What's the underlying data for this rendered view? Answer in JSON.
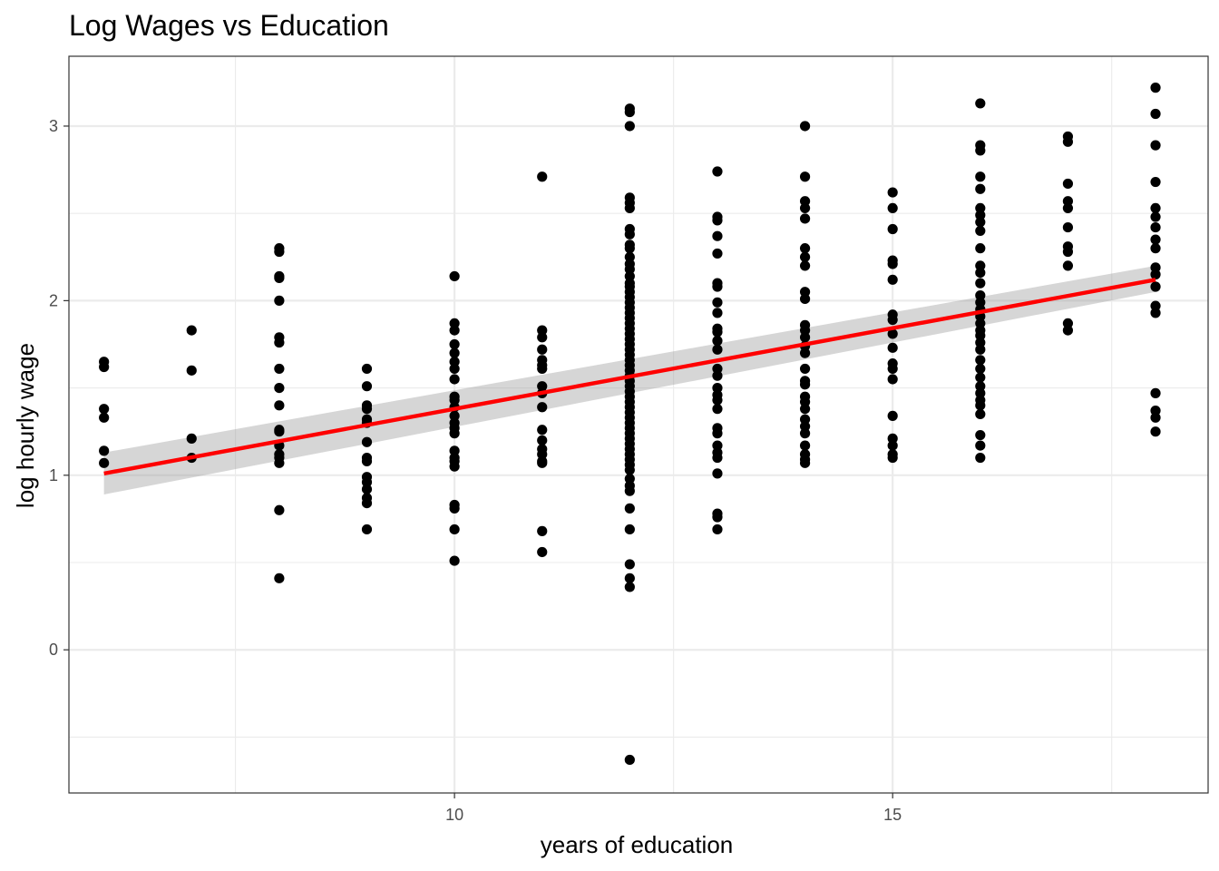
{
  "chart_data": {
    "type": "scatter",
    "title": "Log Wages vs Education",
    "xlabel": "years of education",
    "ylabel": "log hourly wage",
    "xlim": [
      5.6,
      18.6
    ],
    "ylim": [
      -0.82,
      3.4
    ],
    "x_ticks": [
      10,
      15
    ],
    "x_tick_labels": [
      "10",
      "15"
    ],
    "x_minor_ticks": [
      7.5,
      12.5,
      17.5
    ],
    "y_ticks": [
      0,
      1,
      2,
      3
    ],
    "y_tick_labels": [
      "0",
      "1",
      "2",
      "3"
    ],
    "y_minor_ticks": [
      -0.5,
      0.5,
      1.5,
      2.5
    ],
    "grid": true,
    "colors": {
      "points": "#000000",
      "fit_line": "#ff0000",
      "ribbon": "#999999",
      "grid": "#ebebeb",
      "panel_border": "#333333"
    },
    "series": [
      {
        "type": "scatter",
        "points": [
          [
            6,
            1.65
          ],
          [
            6,
            1.62
          ],
          [
            6,
            1.38
          ],
          [
            6,
            1.33
          ],
          [
            6,
            1.14
          ],
          [
            6,
            1.07
          ],
          [
            7,
            1.83
          ],
          [
            7,
            1.6
          ],
          [
            7,
            1.21
          ],
          [
            7,
            1.1
          ],
          [
            8,
            2.3
          ],
          [
            8,
            2.28
          ],
          [
            8,
            2.14
          ],
          [
            8,
            2.13
          ],
          [
            8,
            2.0
          ],
          [
            8,
            1.79
          ],
          [
            8,
            1.76
          ],
          [
            8,
            1.61
          ],
          [
            8,
            1.5
          ],
          [
            8,
            1.4
          ],
          [
            8,
            1.26
          ],
          [
            8,
            1.25
          ],
          [
            8,
            1.17
          ],
          [
            8,
            1.12
          ],
          [
            8,
            1.1
          ],
          [
            8,
            1.07
          ],
          [
            8,
            0.8
          ],
          [
            8,
            0.41
          ],
          [
            9,
            1.61
          ],
          [
            9,
            1.51
          ],
          [
            9,
            1.4
          ],
          [
            9,
            1.38
          ],
          [
            9,
            1.32
          ],
          [
            9,
            1.3
          ],
          [
            9,
            1.19
          ],
          [
            9,
            1.1
          ],
          [
            9,
            1.08
          ],
          [
            9,
            0.99
          ],
          [
            9,
            0.96
          ],
          [
            9,
            0.92
          ],
          [
            9,
            0.87
          ],
          [
            9,
            0.84
          ],
          [
            9,
            0.69
          ],
          [
            10,
            2.14
          ],
          [
            10,
            1.87
          ],
          [
            10,
            1.83
          ],
          [
            10,
            1.75
          ],
          [
            10,
            1.7
          ],
          [
            10,
            1.65
          ],
          [
            10,
            1.61
          ],
          [
            10,
            1.55
          ],
          [
            10,
            1.45
          ],
          [
            10,
            1.43
          ],
          [
            10,
            1.39
          ],
          [
            10,
            1.34
          ],
          [
            10,
            1.3
          ],
          [
            10,
            1.27
          ],
          [
            10,
            1.24
          ],
          [
            10,
            1.14
          ],
          [
            10,
            1.1
          ],
          [
            10,
            1.08
          ],
          [
            10,
            1.05
          ],
          [
            10,
            0.83
          ],
          [
            10,
            0.81
          ],
          [
            10,
            0.69
          ],
          [
            10,
            0.51
          ],
          [
            11,
            2.71
          ],
          [
            11,
            1.83
          ],
          [
            11,
            1.79
          ],
          [
            11,
            1.72
          ],
          [
            11,
            1.66
          ],
          [
            11,
            1.63
          ],
          [
            11,
            1.61
          ],
          [
            11,
            1.51
          ],
          [
            11,
            1.47
          ],
          [
            11,
            1.39
          ],
          [
            11,
            1.26
          ],
          [
            11,
            1.2
          ],
          [
            11,
            1.15
          ],
          [
            11,
            1.12
          ],
          [
            11,
            1.08
          ],
          [
            11,
            1.07
          ],
          [
            11,
            0.68
          ],
          [
            11,
            0.56
          ],
          [
            12,
            3.1
          ],
          [
            12,
            3.08
          ],
          [
            12,
            3.0
          ],
          [
            12,
            2.59
          ],
          [
            12,
            2.56
          ],
          [
            12,
            2.53
          ],
          [
            12,
            2.41
          ],
          [
            12,
            2.38
          ],
          [
            12,
            2.32
          ],
          [
            12,
            2.3
          ],
          [
            12,
            2.25
          ],
          [
            12,
            2.21
          ],
          [
            12,
            2.18
          ],
          [
            12,
            2.14
          ],
          [
            12,
            2.1
          ],
          [
            12,
            2.08
          ],
          [
            12,
            2.05
          ],
          [
            12,
            2.02
          ],
          [
            12,
            1.99
          ],
          [
            12,
            1.96
          ],
          [
            12,
            1.93
          ],
          [
            12,
            1.9
          ],
          [
            12,
            1.87
          ],
          [
            12,
            1.84
          ],
          [
            12,
            1.81
          ],
          [
            12,
            1.78
          ],
          [
            12,
            1.75
          ],
          [
            12,
            1.72
          ],
          [
            12,
            1.69
          ],
          [
            12,
            1.66
          ],
          [
            12,
            1.63
          ],
          [
            12,
            1.6
          ],
          [
            12,
            1.57
          ],
          [
            12,
            1.54
          ],
          [
            12,
            1.51
          ],
          [
            12,
            1.48
          ],
          [
            12,
            1.45
          ],
          [
            12,
            1.42
          ],
          [
            12,
            1.39
          ],
          [
            12,
            1.36
          ],
          [
            12,
            1.33
          ],
          [
            12,
            1.3
          ],
          [
            12,
            1.27
          ],
          [
            12,
            1.24
          ],
          [
            12,
            1.21
          ],
          [
            12,
            1.18
          ],
          [
            12,
            1.15
          ],
          [
            12,
            1.12
          ],
          [
            12,
            1.09
          ],
          [
            12,
            1.06
          ],
          [
            12,
            1.03
          ],
          [
            12,
            0.98
          ],
          [
            12,
            0.94
          ],
          [
            12,
            0.91
          ],
          [
            12,
            0.81
          ],
          [
            12,
            0.69
          ],
          [
            12,
            0.49
          ],
          [
            12,
            0.41
          ],
          [
            12,
            0.36
          ],
          [
            12,
            -0.63
          ],
          [
            13,
            2.74
          ],
          [
            13,
            2.48
          ],
          [
            13,
            2.46
          ],
          [
            13,
            2.37
          ],
          [
            13,
            2.27
          ],
          [
            13,
            2.1
          ],
          [
            13,
            2.08
          ],
          [
            13,
            1.99
          ],
          [
            13,
            1.93
          ],
          [
            13,
            1.84
          ],
          [
            13,
            1.82
          ],
          [
            13,
            1.77
          ],
          [
            13,
            1.72
          ],
          [
            13,
            1.61
          ],
          [
            13,
            1.57
          ],
          [
            13,
            1.5
          ],
          [
            13,
            1.46
          ],
          [
            13,
            1.43
          ],
          [
            13,
            1.38
          ],
          [
            13,
            1.27
          ],
          [
            13,
            1.24
          ],
          [
            13,
            1.17
          ],
          [
            13,
            1.13
          ],
          [
            13,
            1.1
          ],
          [
            13,
            1.01
          ],
          [
            13,
            0.78
          ],
          [
            13,
            0.76
          ],
          [
            13,
            0.69
          ],
          [
            14,
            3.0
          ],
          [
            14,
            2.71
          ],
          [
            14,
            2.57
          ],
          [
            14,
            2.53
          ],
          [
            14,
            2.47
          ],
          [
            14,
            2.3
          ],
          [
            14,
            2.25
          ],
          [
            14,
            2.2
          ],
          [
            14,
            2.05
          ],
          [
            14,
            2.01
          ],
          [
            14,
            1.86
          ],
          [
            14,
            1.83
          ],
          [
            14,
            1.79
          ],
          [
            14,
            1.74
          ],
          [
            14,
            1.7
          ],
          [
            14,
            1.61
          ],
          [
            14,
            1.54
          ],
          [
            14,
            1.52
          ],
          [
            14,
            1.45
          ],
          [
            14,
            1.42
          ],
          [
            14,
            1.38
          ],
          [
            14,
            1.32
          ],
          [
            14,
            1.28
          ],
          [
            14,
            1.24
          ],
          [
            14,
            1.17
          ],
          [
            14,
            1.12
          ],
          [
            14,
            1.09
          ],
          [
            14,
            1.07
          ],
          [
            15,
            2.62
          ],
          [
            15,
            2.53
          ],
          [
            15,
            2.41
          ],
          [
            15,
            2.23
          ],
          [
            15,
            2.21
          ],
          [
            15,
            2.12
          ],
          [
            15,
            1.92
          ],
          [
            15,
            1.89
          ],
          [
            15,
            1.81
          ],
          [
            15,
            1.73
          ],
          [
            15,
            1.64
          ],
          [
            15,
            1.61
          ],
          [
            15,
            1.55
          ],
          [
            15,
            1.34
          ],
          [
            15,
            1.21
          ],
          [
            15,
            1.17
          ],
          [
            15,
            1.12
          ],
          [
            15,
            1.1
          ],
          [
            16,
            3.13
          ],
          [
            16,
            2.89
          ],
          [
            16,
            2.86
          ],
          [
            16,
            2.71
          ],
          [
            16,
            2.64
          ],
          [
            16,
            2.53
          ],
          [
            16,
            2.49
          ],
          [
            16,
            2.45
          ],
          [
            16,
            2.4
          ],
          [
            16,
            2.3
          ],
          [
            16,
            2.2
          ],
          [
            16,
            2.16
          ],
          [
            16,
            2.1
          ],
          [
            16,
            2.03
          ],
          [
            16,
            1.99
          ],
          [
            16,
            1.95
          ],
          [
            16,
            1.91
          ],
          [
            16,
            1.87
          ],
          [
            16,
            1.83
          ],
          [
            16,
            1.8
          ],
          [
            16,
            1.76
          ],
          [
            16,
            1.72
          ],
          [
            16,
            1.66
          ],
          [
            16,
            1.61
          ],
          [
            16,
            1.56
          ],
          [
            16,
            1.51
          ],
          [
            16,
            1.47
          ],
          [
            16,
            1.43
          ],
          [
            16,
            1.4
          ],
          [
            16,
            1.35
          ],
          [
            16,
            1.23
          ],
          [
            16,
            1.17
          ],
          [
            16,
            1.1
          ],
          [
            17,
            2.94
          ],
          [
            17,
            2.91
          ],
          [
            17,
            2.67
          ],
          [
            17,
            2.57
          ],
          [
            17,
            2.53
          ],
          [
            17,
            2.42
          ],
          [
            17,
            2.31
          ],
          [
            17,
            2.28
          ],
          [
            17,
            2.2
          ],
          [
            17,
            1.87
          ],
          [
            17,
            1.83
          ],
          [
            18,
            3.22
          ],
          [
            18,
            3.07
          ],
          [
            18,
            2.89
          ],
          [
            18,
            2.68
          ],
          [
            18,
            2.53
          ],
          [
            18,
            2.48
          ],
          [
            18,
            2.42
          ],
          [
            18,
            2.35
          ],
          [
            18,
            2.3
          ],
          [
            18,
            2.19
          ],
          [
            18,
            2.15
          ],
          [
            18,
            2.08
          ],
          [
            18,
            1.97
          ],
          [
            18,
            1.93
          ],
          [
            18,
            1.47
          ],
          [
            18,
            1.37
          ],
          [
            18,
            1.33
          ],
          [
            18,
            1.25
          ]
        ]
      },
      {
        "type": "line",
        "fit": "linear",
        "x": [
          6,
          18
        ],
        "y": [
          1.01,
          2.12
        ],
        "ribbon_lower": [
          0.89,
          2.05
        ],
        "ribbon_upper": [
          1.13,
          2.2
        ]
      }
    ]
  }
}
